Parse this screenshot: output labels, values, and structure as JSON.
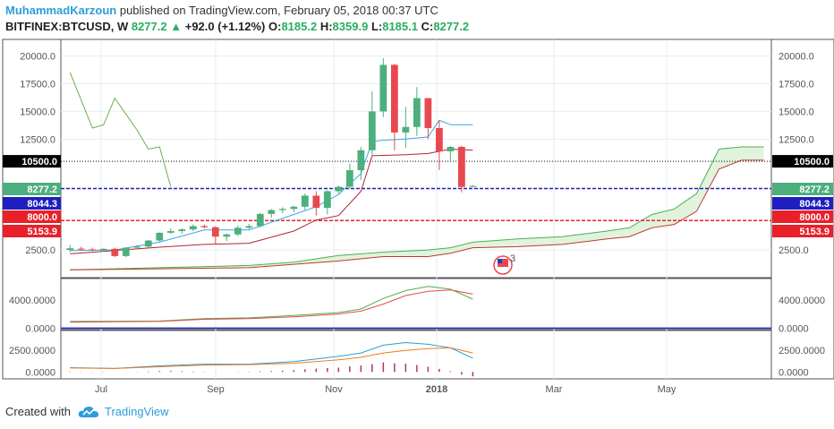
{
  "header": {
    "author": "MuhammadKarzoun",
    "published": " published on TradingView.com, February 05, 2018 00:37 UTC",
    "symbol": "BITFINEX:BTCUSD, W",
    "last": "8277.2",
    "change_arrow": "▲",
    "change": "+92.0 (+1.12%)",
    "o_label": "O:",
    "o": "8185.2",
    "h_label": "H:",
    "h": "8359.9",
    "l_label": "L:",
    "l": "8185.1",
    "c_label": "C:",
    "c": "8277.2"
  },
  "footer": {
    "created_with": "Created with",
    "brand": "TradingView"
  },
  "colors": {
    "up": "#4caf7d",
    "down": "#e8484f",
    "tenkan": "#3ba7e0",
    "kijun": "#b0252f",
    "chikou": "#6ab04c",
    "cloud": "#d9f0d3",
    "blue_line": "#1f1fbf",
    "red_line": "#e8202a",
    "black_line": "#000000",
    "panel2_fast": "#4caf50",
    "panel2_slow": "#e8484f",
    "macd": "#2d9cdb",
    "signal": "#f07d1a",
    "hist": "#b0306f"
  },
  "chart_data": [
    {
      "type": "candlestick",
      "panel": "price",
      "ylim": [
        0,
        21500
      ],
      "y_ticks": [
        "20000.0",
        "17500.0",
        "15000.0",
        "12500.0",
        "2500.0"
      ],
      "x_ticks": [
        "Jul",
        "Sep",
        "Nov",
        "2018",
        "Mar",
        "May"
      ],
      "price_labels": [
        {
          "text": "10500.0",
          "value": 10500,
          "color": "#000000"
        },
        {
          "text": "8277.2",
          "value": 8277.2,
          "color": "#4caf7d"
        },
        {
          "text": "8044.3",
          "value": 8044.3,
          "color": "#1f1fbf"
        },
        {
          "text": "8000.0",
          "value": 8000,
          "color": "#e8202a"
        },
        {
          "text": "5153.9",
          "value": 5153.9,
          "color": "#e8202a"
        }
      ],
      "horizontal_lines": [
        {
          "value": 10500,
          "style": "dotted",
          "color": "#000000"
        },
        {
          "value": 8044.3,
          "style": "dashed",
          "color": "#1f1fbf"
        },
        {
          "value": 5153.9,
          "style": "dashed",
          "color": "#e8202a"
        }
      ],
      "candles": [
        {
          "t": 0,
          "o": 2500,
          "h": 2950,
          "l": 2300,
          "c": 2650
        },
        {
          "t": 1,
          "o": 2620,
          "h": 2800,
          "l": 2450,
          "c": 2550
        },
        {
          "t": 2,
          "o": 2550,
          "h": 2700,
          "l": 2400,
          "c": 2480
        },
        {
          "t": 3,
          "o": 2480,
          "h": 2650,
          "l": 2350,
          "c": 2600
        },
        {
          "t": 4,
          "o": 2600,
          "h": 2700,
          "l": 1850,
          "c": 1950
        },
        {
          "t": 5,
          "o": 1950,
          "h": 2750,
          "l": 1850,
          "c": 2700
        },
        {
          "t": 6,
          "o": 2700,
          "h": 2950,
          "l": 2600,
          "c": 2800
        },
        {
          "t": 7,
          "o": 2800,
          "h": 3400,
          "l": 2700,
          "c": 3350
        },
        {
          "t": 8,
          "o": 3350,
          "h": 4100,
          "l": 3200,
          "c": 4050
        },
        {
          "t": 9,
          "o": 4050,
          "h": 4450,
          "l": 3950,
          "c": 4200
        },
        {
          "t": 10,
          "o": 4200,
          "h": 4450,
          "l": 3950,
          "c": 4350
        },
        {
          "t": 11,
          "o": 4350,
          "h": 4800,
          "l": 4200,
          "c": 4650
        },
        {
          "t": 12,
          "o": 4650,
          "h": 4800,
          "l": 4450,
          "c": 4550
        },
        {
          "t": 13,
          "o": 4550,
          "h": 4650,
          "l": 3000,
          "c": 3700
        },
        {
          "t": 14,
          "o": 3700,
          "h": 4000,
          "l": 3300,
          "c": 3900
        },
        {
          "t": 15,
          "o": 3900,
          "h": 4700,
          "l": 3750,
          "c": 4500
        },
        {
          "t": 16,
          "o": 4500,
          "h": 4850,
          "l": 4350,
          "c": 4650
        },
        {
          "t": 17,
          "o": 4650,
          "h": 5850,
          "l": 4550,
          "c": 5750
        },
        {
          "t": 18,
          "o": 5750,
          "h": 6200,
          "l": 5400,
          "c": 6100
        },
        {
          "t": 19,
          "o": 6100,
          "h": 6350,
          "l": 5800,
          "c": 6200
        },
        {
          "t": 20,
          "o": 6200,
          "h": 6500,
          "l": 5900,
          "c": 6400
        },
        {
          "t": 21,
          "o": 6400,
          "h": 7600,
          "l": 6100,
          "c": 7400
        },
        {
          "t": 22,
          "o": 7400,
          "h": 7800,
          "l": 5600,
          "c": 6300
        },
        {
          "t": 23,
          "o": 6300,
          "h": 7900,
          "l": 5700,
          "c": 7800
        },
        {
          "t": 24,
          "o": 7800,
          "h": 8300,
          "l": 7600,
          "c": 8200
        },
        {
          "t": 25,
          "o": 8200,
          "h": 10300,
          "l": 8050,
          "c": 9700
        },
        {
          "t": 26,
          "o": 9700,
          "h": 11800,
          "l": 8800,
          "c": 11500
        },
        {
          "t": 27,
          "o": 11500,
          "h": 16800,
          "l": 11000,
          "c": 15000
        },
        {
          "t": 28,
          "o": 15000,
          "h": 19800,
          "l": 14500,
          "c": 19200
        },
        {
          "t": 29,
          "o": 19200,
          "h": 19300,
          "l": 11500,
          "c": 13100
        },
        {
          "t": 30,
          "o": 13100,
          "h": 15400,
          "l": 11700,
          "c": 13600
        },
        {
          "t": 31,
          "o": 13600,
          "h": 17200,
          "l": 12800,
          "c": 16200
        },
        {
          "t": 32,
          "o": 16200,
          "h": 16200,
          "l": 12500,
          "c": 13500
        },
        {
          "t": 33,
          "o": 13500,
          "h": 14200,
          "l": 9700,
          "c": 11400
        },
        {
          "t": 34,
          "o": 11400,
          "h": 11900,
          "l": 10400,
          "c": 11800
        },
        {
          "t": 35,
          "o": 11800,
          "h": 11900,
          "l": 7700,
          "c": 8185
        },
        {
          "t": 36,
          "o": 8185.2,
          "h": 8359.9,
          "l": 8185.1,
          "c": 8277.2
        }
      ],
      "tenkan": [
        [
          0,
          2450
        ],
        [
          4,
          2500
        ],
        [
          8,
          3200
        ],
        [
          12,
          4300
        ],
        [
          16,
          4300
        ],
        [
          20,
          5700
        ],
        [
          22,
          6400
        ],
        [
          24,
          7500
        ],
        [
          26,
          9400
        ],
        [
          27,
          12300
        ],
        [
          28,
          12400
        ],
        [
          30,
          12500
        ],
        [
          32,
          12700
        ],
        [
          33,
          14200
        ],
        [
          34,
          13800
        ],
        [
          36,
          13800
        ]
      ],
      "kijun": [
        [
          0,
          2150
        ],
        [
          8,
          2750
        ],
        [
          12,
          3000
        ],
        [
          16,
          3100
        ],
        [
          20,
          4200
        ],
        [
          22,
          5200
        ],
        [
          24,
          5600
        ],
        [
          26,
          7800
        ],
        [
          27,
          11000
        ],
        [
          30,
          11100
        ],
        [
          32,
          11200
        ],
        [
          34,
          11600
        ],
        [
          36,
          11500
        ]
      ],
      "chikou": [
        [
          0,
          18500
        ],
        [
          2,
          13500
        ],
        [
          3,
          13800
        ],
        [
          4,
          16200
        ],
        [
          6,
          13300
        ],
        [
          7,
          11600
        ],
        [
          8,
          11800
        ],
        [
          9,
          8200
        ]
      ],
      "cloud_a": [
        [
          0,
          700
        ],
        [
          8,
          900
        ],
        [
          16,
          1100
        ],
        [
          20,
          1400
        ],
        [
          24,
          2000
        ],
        [
          28,
          2300
        ],
        [
          32,
          2500
        ],
        [
          34,
          2700
        ],
        [
          36,
          3200
        ],
        [
          40,
          3500
        ],
        [
          44,
          3700
        ],
        [
          48,
          4200
        ],
        [
          50,
          4500
        ],
        [
          52,
          5700
        ],
        [
          54,
          6200
        ],
        [
          56,
          7600
        ],
        [
          58,
          11600
        ],
        [
          60,
          11800
        ],
        [
          62,
          11800
        ]
      ],
      "cloud_b": [
        [
          0,
          700
        ],
        [
          16,
          900
        ],
        [
          24,
          1500
        ],
        [
          28,
          1900
        ],
        [
          32,
          1900
        ],
        [
          34,
          2200
        ],
        [
          36,
          2700
        ],
        [
          40,
          2800
        ],
        [
          44,
          3000
        ],
        [
          48,
          3500
        ],
        [
          50,
          3700
        ],
        [
          52,
          4500
        ],
        [
          54,
          4800
        ],
        [
          56,
          6000
        ],
        [
          58,
          9800
        ],
        [
          60,
          10600
        ],
        [
          62,
          10600
        ]
      ]
    },
    {
      "type": "line",
      "panel": "indicator-1",
      "ylim": [
        -200,
        7000
      ],
      "y_ticks": [
        "4000.0000",
        "0.0000"
      ],
      "series": [
        {
          "values": [
            [
              0,
              950
            ],
            [
              8,
              1000
            ],
            [
              12,
              1350
            ],
            [
              16,
              1450
            ],
            [
              20,
              1800
            ],
            [
              24,
              2200
            ],
            [
              26,
              2700
            ],
            [
              28,
              4200
            ],
            [
              30,
              5300
            ],
            [
              32,
              5900
            ],
            [
              34,
              5500
            ],
            [
              36,
              4100
            ]
          ]
        },
        {
          "values": [
            [
              0,
              850
            ],
            [
              8,
              950
            ],
            [
              12,
              1250
            ],
            [
              16,
              1350
            ],
            [
              20,
              1600
            ],
            [
              24,
              2000
            ],
            [
              26,
              2400
            ],
            [
              28,
              3400
            ],
            [
              30,
              4600
            ],
            [
              32,
              5200
            ],
            [
              34,
              5400
            ],
            [
              36,
              4800
            ]
          ]
        }
      ]
    },
    {
      "type": "line",
      "panel": "indicator-2",
      "ylim": [
        -800,
        4800
      ],
      "y_ticks": [
        "2500.0000",
        "0.0000"
      ],
      "series": [
        {
          "values": [
            [
              0,
              500
            ],
            [
              4,
              400
            ],
            [
              8,
              700
            ],
            [
              12,
              900
            ],
            [
              16,
              900
            ],
            [
              20,
              1200
            ],
            [
              24,
              1800
            ],
            [
              26,
              2200
            ],
            [
              28,
              3100
            ],
            [
              30,
              3400
            ],
            [
              32,
              3200
            ],
            [
              34,
              2800
            ],
            [
              36,
              1600
            ]
          ]
        },
        {
          "values": [
            [
              0,
              450
            ],
            [
              4,
              400
            ],
            [
              8,
              600
            ],
            [
              12,
              800
            ],
            [
              16,
              850
            ],
            [
              20,
              1000
            ],
            [
              24,
              1400
            ],
            [
              26,
              1700
            ],
            [
              28,
              2200
            ],
            [
              30,
              2500
            ],
            [
              32,
              2700
            ],
            [
              34,
              2800
            ],
            [
              36,
              2200
            ]
          ]
        }
      ],
      "histogram": [
        [
          0,
          50
        ],
        [
          1,
          30
        ],
        [
          2,
          20
        ],
        [
          3,
          30
        ],
        [
          5,
          -10
        ],
        [
          6,
          20
        ],
        [
          7,
          60
        ],
        [
          8,
          100
        ],
        [
          9,
          110
        ],
        [
          10,
          80
        ],
        [
          11,
          60
        ],
        [
          12,
          40
        ],
        [
          13,
          20
        ],
        [
          15,
          20
        ],
        [
          16,
          40
        ],
        [
          17,
          70
        ],
        [
          18,
          100
        ],
        [
          19,
          150
        ],
        [
          20,
          200
        ],
        [
          21,
          300
        ],
        [
          22,
          380
        ],
        [
          23,
          450
        ],
        [
          24,
          500
        ],
        [
          25,
          650
        ],
        [
          26,
          750
        ],
        [
          27,
          900
        ],
        [
          28,
          1100
        ],
        [
          29,
          1000
        ],
        [
          30,
          950
        ],
        [
          31,
          800
        ],
        [
          32,
          600
        ],
        [
          33,
          350
        ],
        [
          34,
          80
        ],
        [
          35,
          -300
        ],
        [
          36,
          -500
        ]
      ]
    }
  ]
}
